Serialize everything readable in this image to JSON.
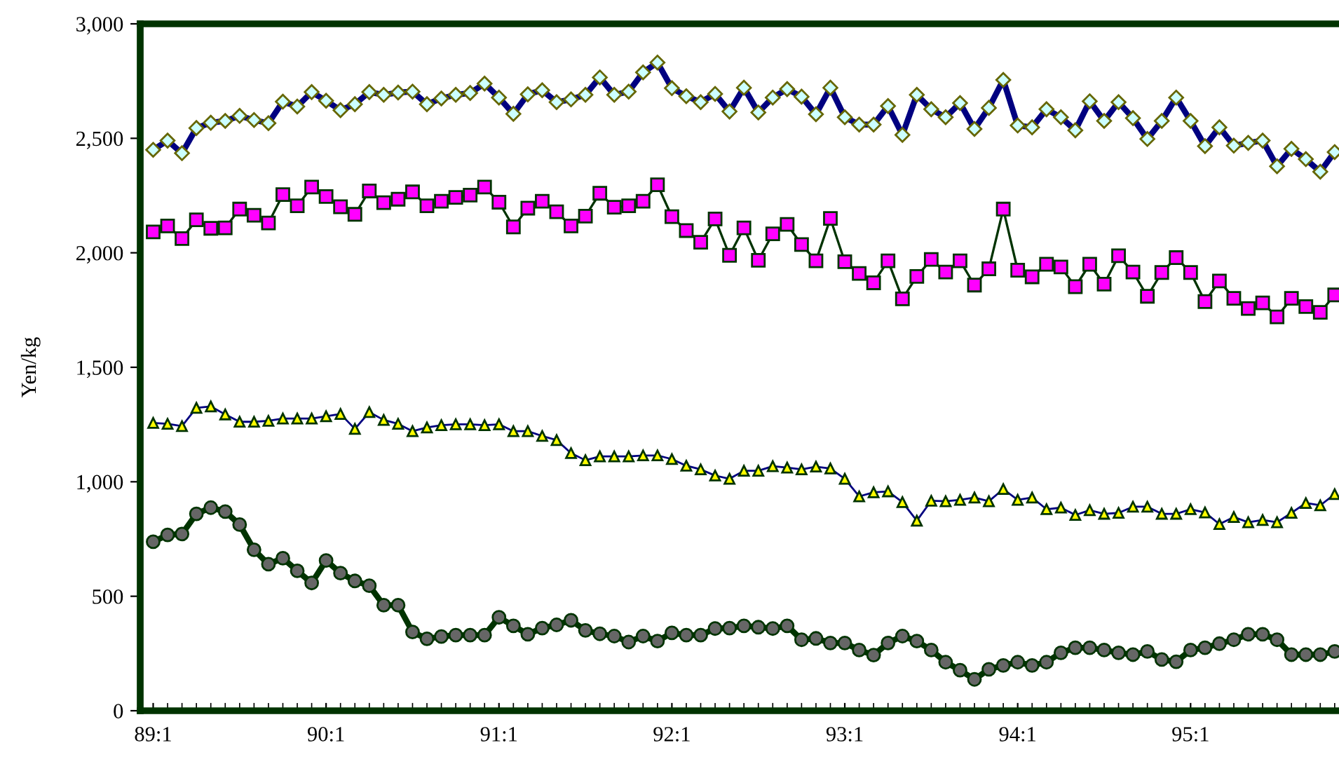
{
  "chart_data": {
    "type": "line",
    "ylabel": "Yen/kg",
    "categories": [
      "89:1",
      null,
      null,
      null,
      null,
      null,
      null,
      null,
      null,
      null,
      null,
      null,
      "90:1",
      null,
      null,
      null,
      null,
      null,
      null,
      null,
      null,
      null,
      null,
      null,
      "91:1",
      null,
      null,
      null,
      null,
      null,
      null,
      null,
      null,
      null,
      null,
      null,
      "92:1",
      null,
      null,
      null,
      null,
      null,
      null,
      null,
      null,
      null,
      null,
      null,
      "93:1",
      null,
      null,
      null,
      null,
      null,
      null,
      null,
      null,
      null,
      null,
      null,
      "94:1",
      null,
      null,
      null,
      null,
      null,
      null,
      null,
      null,
      null,
      null,
      null,
      "95:1",
      null,
      null,
      null,
      null,
      null,
      null,
      null,
      null,
      null,
      null
    ],
    "ylim": [
      0,
      3000
    ],
    "yticks": [
      {
        "value": 0,
        "label": "0"
      },
      {
        "value": 500,
        "label": "500"
      },
      {
        "value": 1000,
        "label": "1,000"
      },
      {
        "value": 1500,
        "label": "1,500"
      },
      {
        "value": 2000,
        "label": "2,000"
      },
      {
        "value": 2500,
        "label": "2,500"
      },
      {
        "value": 3000,
        "label": "3,000"
      }
    ],
    "grid": false,
    "legend": false,
    "line_style": "solid",
    "series": [
      {
        "color": "#000080",
        "marker": "diamond",
        "values": [
          2450,
          2490,
          2435,
          2545,
          2568,
          2576,
          2598,
          2580,
          2566,
          2660,
          2639,
          2702,
          2664,
          2623,
          2649,
          2702,
          2690,
          2700,
          2704,
          2649,
          2674,
          2690,
          2698,
          2739,
          2678,
          2607,
          2692,
          2710,
          2658,
          2670,
          2690,
          2766,
          2690,
          2704,
          2788,
          2831,
          2719,
          2684,
          2658,
          2694,
          2617,
          2721,
          2613,
          2678,
          2715,
          2682,
          2605,
          2721,
          2592,
          2560,
          2560,
          2641,
          2515,
          2690,
          2627,
          2592,
          2654,
          2541,
          2633,
          2755,
          2556,
          2548,
          2627,
          2592,
          2535,
          2662,
          2576,
          2658,
          2588,
          2497,
          2576,
          2678,
          2576,
          2466,
          2548,
          2468,
          2480,
          2490,
          2378,
          2454,
          2409,
          2354,
          2440
        ]
      },
      {
        "color": "#003300",
        "marker": "square",
        "values": [
          2091,
          2117,
          2062,
          2144,
          2107,
          2109,
          2191,
          2164,
          2130,
          2254,
          2205,
          2287,
          2246,
          2201,
          2168,
          2270,
          2219,
          2234,
          2266,
          2205,
          2225,
          2242,
          2252,
          2287,
          2221,
          2113,
          2195,
          2225,
          2179,
          2117,
          2160,
          2260,
          2199,
          2205,
          2225,
          2297,
          2158,
          2097,
          2046,
          2148,
          1989,
          2109,
          1967,
          2083,
          2124,
          2036,
          1965,
          2150,
          1961,
          1910,
          1869,
          1965,
          1799,
          1897,
          1971,
          1916,
          1965,
          1859,
          1930,
          2191,
          1924,
          1895,
          1950,
          1938,
          1852,
          1950,
          1863,
          1987,
          1916,
          1810,
          1914,
          1979,
          1914,
          1787,
          1877,
          1801,
          1757,
          1781,
          1720,
          1801,
          1765,
          1740,
          1816
        ]
      },
      {
        "color": "#000080",
        "marker": "triangle",
        "values": [
          1257,
          1253,
          1243,
          1323,
          1329,
          1294,
          1262,
          1262,
          1266,
          1276,
          1276,
          1276,
          1286,
          1296,
          1231,
          1304,
          1270,
          1253,
          1221,
          1237,
          1247,
          1251,
          1251,
          1247,
          1251,
          1221,
          1221,
          1200,
          1182,
          1125,
          1094,
          1111,
          1111,
          1111,
          1115,
          1115,
          1099,
          1070,
          1054,
          1027,
          1013,
          1048,
          1048,
          1068,
          1062,
          1054,
          1066,
          1058,
          1013,
          936,
          954,
          958,
          911,
          830,
          917,
          915,
          921,
          931,
          915,
          968,
          921,
          931,
          880,
          887,
          855,
          876,
          860,
          864,
          891,
          891,
          860,
          860,
          880,
          866,
          815,
          846,
          823,
          833,
          823,
          864,
          907,
          897,
          946
        ]
      },
      {
        "color": "#003300",
        "marker": "circle",
        "values": [
          738,
          768,
          772,
          860,
          887,
          870,
          813,
          703,
          640,
          666,
          611,
          558,
          656,
          601,
          567,
          546,
          461,
          461,
          344,
          314,
          324,
          330,
          330,
          330,
          408,
          371,
          334,
          361,
          375,
          395,
          351,
          336,
          326,
          300,
          326,
          304,
          340,
          330,
          330,
          359,
          361,
          371,
          365,
          359,
          371,
          310,
          316,
          296,
          296,
          265,
          243,
          296,
          326,
          304,
          265,
          212,
          177,
          137,
          181,
          198,
          212,
          198,
          212,
          253,
          275,
          275,
          265,
          253,
          245,
          259,
          224,
          214,
          265,
          275,
          293,
          310,
          334,
          334,
          310,
          245,
          245,
          245,
          259
        ]
      }
    ]
  }
}
